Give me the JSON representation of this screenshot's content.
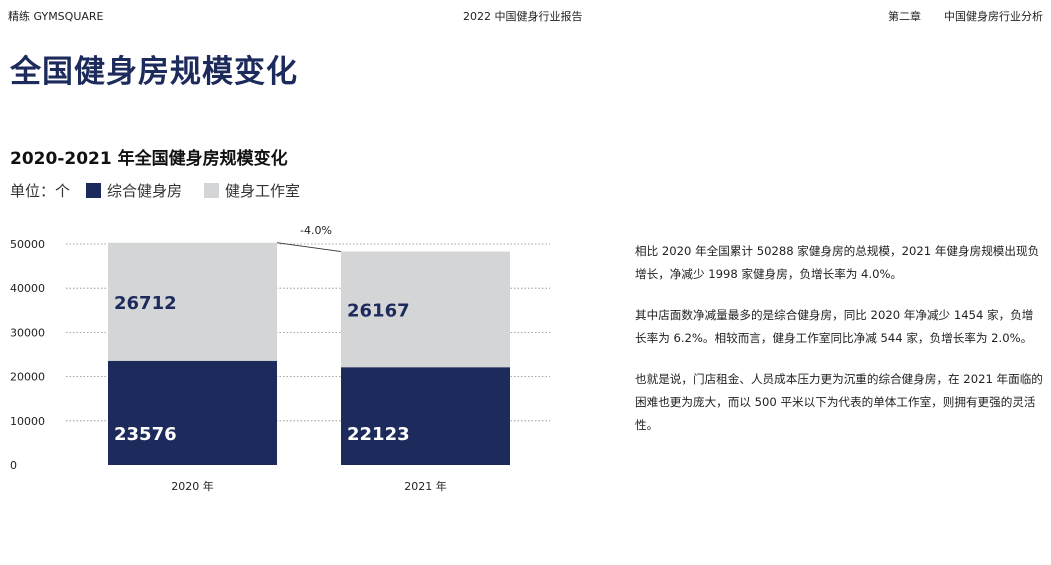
{
  "header": {
    "left": "精练 GYMSQUARE",
    "center": "2022 中国健身行业报告",
    "right_chapter": "第二章",
    "right_section": "中国健身房行业分析"
  },
  "page_title": "全国健身房规模变化",
  "legend": {
    "unit_label": "单位：个",
    "colors": {
      "comprehensive": "#1d2a5c",
      "studio": "#d4d5d6"
    }
  },
  "chart_data": {
    "type": "bar",
    "stacked": true,
    "title": "2020-2021 年全国健身房规模变化",
    "categories": [
      "2020 年",
      "2021 年"
    ],
    "series": [
      {
        "name": "综合健身房",
        "values": [
          23576,
          22123
        ]
      },
      {
        "name": "健身工作室",
        "values": [
          26712,
          26167
        ]
      }
    ],
    "ylim": [
      0,
      50000
    ],
    "yticks": [
      "50000",
      "40000",
      "30000",
      "20000",
      "10000",
      "0"
    ],
    "grid": true,
    "annotation": "-4.0%"
  },
  "text_blocks": [
    "相比 2020 年全国累计 50288 家健身房的总规模，2021 年健身房规模出现负增长，净减少 1998 家健身房，负增长率为 4.0%。",
    "其中店面数净减量最多的是综合健身房，同比 2020 年净减少 1454 家，负增长率为 6.2%。相较而言，健身工作室同比净减 544 家，负增长率为 2.0%。",
    "也就是说，门店租金、人员成本压力更为沉重的综合健身房，在 2021 年面临的困难也更为庞大，而以 500 平米以下为代表的单体工作室，则拥有更强的灵活性。"
  ]
}
